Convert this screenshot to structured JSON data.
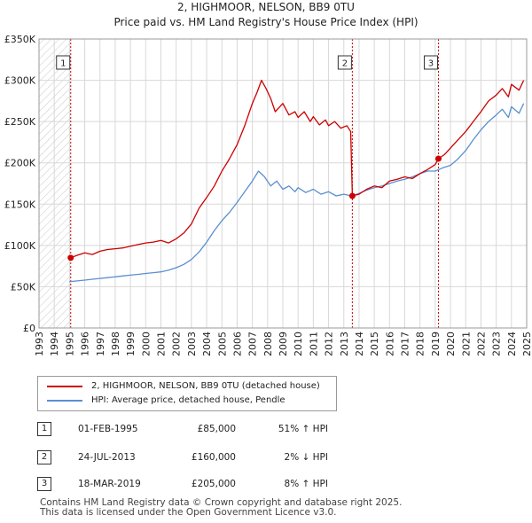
{
  "title_line1": "2, HIGHMOOR, NELSON, BB9 0TU",
  "title_line2": "Price paid vs. HM Land Registry's House Price Index (HPI)",
  "legend": {
    "red_label": "2, HIGHMOOR, NELSON, BB9 0TU (detached house)",
    "blue_label": "HPI: Average price, detached house, Pendle"
  },
  "colors": {
    "property": "#cc0000",
    "hpi": "#5b8fd0",
    "grid": "#d8d8d8",
    "hatch": "#c8c8c8",
    "marker_line": "#cc0000"
  },
  "sales": [
    {
      "num": "1",
      "date": "01-FEB-1995",
      "price": "£85,000",
      "hpi": "51% ↑ HPI"
    },
    {
      "num": "2",
      "date": "24-JUL-2013",
      "price": "£160,000",
      "hpi": "2% ↓ HPI"
    },
    {
      "num": "3",
      "date": "18-MAR-2019",
      "price": "£205,000",
      "hpi": "8% ↑ HPI"
    }
  ],
  "footer": {
    "line1": "Contains HM Land Registry data © Crown copyright and database right 2025.",
    "line2": "This data is licensed under the Open Government Licence v3.0."
  },
  "chart_data": {
    "type": "line",
    "xlim": [
      1993,
      2025
    ],
    "ylim": [
      0,
      350000
    ],
    "x_ticks": [
      1993,
      1994,
      1995,
      1996,
      1997,
      1998,
      1999,
      2000,
      2001,
      2002,
      2003,
      2004,
      2005,
      2006,
      2007,
      2008,
      2009,
      2010,
      2011,
      2012,
      2013,
      2014,
      2015,
      2016,
      2017,
      2018,
      2019,
      2020,
      2021,
      2022,
      2023,
      2024,
      2025
    ],
    "y_ticks": [
      0,
      50000,
      100000,
      150000,
      200000,
      250000,
      300000,
      350000
    ],
    "y_tick_labels": [
      "£0",
      "£50K",
      "£100K",
      "£150K",
      "£200K",
      "£250K",
      "£300K",
      "£350K"
    ],
    "hatched_before": 1995.08,
    "markers": [
      {
        "label": "1",
        "x": 1995.08,
        "y": 85000
      },
      {
        "label": "2",
        "x": 2013.56,
        "y": 160000
      },
      {
        "label": "3",
        "x": 2019.21,
        "y": 205000
      }
    ],
    "series": [
      {
        "name": "2, HIGHMOOR, NELSON, BB9 0TU (detached house)",
        "color": "#cc0000",
        "points": [
          [
            1995.08,
            85000
          ],
          [
            1995.5,
            88000
          ],
          [
            1996,
            91000
          ],
          [
            1996.5,
            89000
          ],
          [
            1997,
            93000
          ],
          [
            1997.5,
            95000
          ],
          [
            1998,
            96000
          ],
          [
            1998.5,
            97000
          ],
          [
            1999,
            99000
          ],
          [
            1999.5,
            101000
          ],
          [
            2000,
            103000
          ],
          [
            2000.5,
            104000
          ],
          [
            2001,
            106000
          ],
          [
            2001.5,
            103000
          ],
          [
            2002,
            108000
          ],
          [
            2002.5,
            115000
          ],
          [
            2003,
            126000
          ],
          [
            2003.5,
            145000
          ],
          [
            2004,
            158000
          ],
          [
            2004.5,
            172000
          ],
          [
            2005,
            190000
          ],
          [
            2005.5,
            205000
          ],
          [
            2006,
            222000
          ],
          [
            2006.5,
            245000
          ],
          [
            2007,
            272000
          ],
          [
            2007.3,
            285000
          ],
          [
            2007.6,
            300000
          ],
          [
            2007.9,
            290000
          ],
          [
            2008.2,
            278000
          ],
          [
            2008.5,
            262000
          ],
          [
            2008.8,
            268000
          ],
          [
            2009,
            272000
          ],
          [
            2009.4,
            258000
          ],
          [
            2009.8,
            262000
          ],
          [
            2010,
            255000
          ],
          [
            2010.4,
            262000
          ],
          [
            2010.8,
            250000
          ],
          [
            2011,
            256000
          ],
          [
            2011.4,
            246000
          ],
          [
            2011.8,
            252000
          ],
          [
            2012,
            245000
          ],
          [
            2012.4,
            250000
          ],
          [
            2012.8,
            242000
          ],
          [
            2013.2,
            245000
          ],
          [
            2013.45,
            238000
          ],
          [
            2013.56,
            160000
          ],
          [
            2014,
            162000
          ],
          [
            2014.5,
            168000
          ],
          [
            2015,
            172000
          ],
          [
            2015.5,
            170000
          ],
          [
            2016,
            178000
          ],
          [
            2016.5,
            180000
          ],
          [
            2017,
            183000
          ],
          [
            2017.5,
            181000
          ],
          [
            2018,
            187000
          ],
          [
            2018.5,
            192000
          ],
          [
            2019,
            198000
          ],
          [
            2019.21,
            205000
          ],
          [
            2019.6,
            210000
          ],
          [
            2020,
            218000
          ],
          [
            2020.5,
            228000
          ],
          [
            2021,
            238000
          ],
          [
            2021.5,
            250000
          ],
          [
            2022,
            262000
          ],
          [
            2022.5,
            275000
          ],
          [
            2023,
            282000
          ],
          [
            2023.4,
            290000
          ],
          [
            2023.8,
            280000
          ],
          [
            2024,
            295000
          ],
          [
            2024.5,
            288000
          ],
          [
            2024.8,
            300000
          ]
        ]
      },
      {
        "name": "HPI: Average price, detached house, Pendle",
        "color": "#5b8fd0",
        "points": [
          [
            1995,
            56000
          ],
          [
            1995.5,
            57000
          ],
          [
            1996,
            58000
          ],
          [
            1996.5,
            59000
          ],
          [
            1997,
            60000
          ],
          [
            1997.5,
            61000
          ],
          [
            1998,
            62000
          ],
          [
            1998.5,
            63000
          ],
          [
            1999,
            64000
          ],
          [
            1999.5,
            65000
          ],
          [
            2000,
            66000
          ],
          [
            2000.5,
            67000
          ],
          [
            2001,
            68000
          ],
          [
            2001.5,
            70000
          ],
          [
            2002,
            73000
          ],
          [
            2002.5,
            77000
          ],
          [
            2003,
            83000
          ],
          [
            2003.5,
            92000
          ],
          [
            2004,
            104000
          ],
          [
            2004.5,
            118000
          ],
          [
            2005,
            130000
          ],
          [
            2005.5,
            140000
          ],
          [
            2006,
            152000
          ],
          [
            2006.5,
            165000
          ],
          [
            2007,
            178000
          ],
          [
            2007.4,
            190000
          ],
          [
            2007.8,
            183000
          ],
          [
            2008.2,
            172000
          ],
          [
            2008.6,
            178000
          ],
          [
            2009,
            168000
          ],
          [
            2009.4,
            172000
          ],
          [
            2009.8,
            165000
          ],
          [
            2010,
            170000
          ],
          [
            2010.5,
            164000
          ],
          [
            2011,
            168000
          ],
          [
            2011.5,
            162000
          ],
          [
            2012,
            165000
          ],
          [
            2012.5,
            160000
          ],
          [
            2013,
            162000
          ],
          [
            2013.5,
            160000
          ],
          [
            2014,
            163000
          ],
          [
            2014.5,
            167000
          ],
          [
            2015,
            170000
          ],
          [
            2015.5,
            172000
          ],
          [
            2016,
            175000
          ],
          [
            2016.5,
            178000
          ],
          [
            2017,
            180000
          ],
          [
            2017.5,
            183000
          ],
          [
            2018,
            187000
          ],
          [
            2018.5,
            190000
          ],
          [
            2019,
            190000
          ],
          [
            2019.5,
            194000
          ],
          [
            2020,
            197000
          ],
          [
            2020.5,
            205000
          ],
          [
            2021,
            215000
          ],
          [
            2021.5,
            228000
          ],
          [
            2022,
            240000
          ],
          [
            2022.5,
            250000
          ],
          [
            2023,
            258000
          ],
          [
            2023.4,
            265000
          ],
          [
            2023.8,
            255000
          ],
          [
            2024,
            268000
          ],
          [
            2024.5,
            260000
          ],
          [
            2024.8,
            272000
          ]
        ]
      }
    ]
  }
}
